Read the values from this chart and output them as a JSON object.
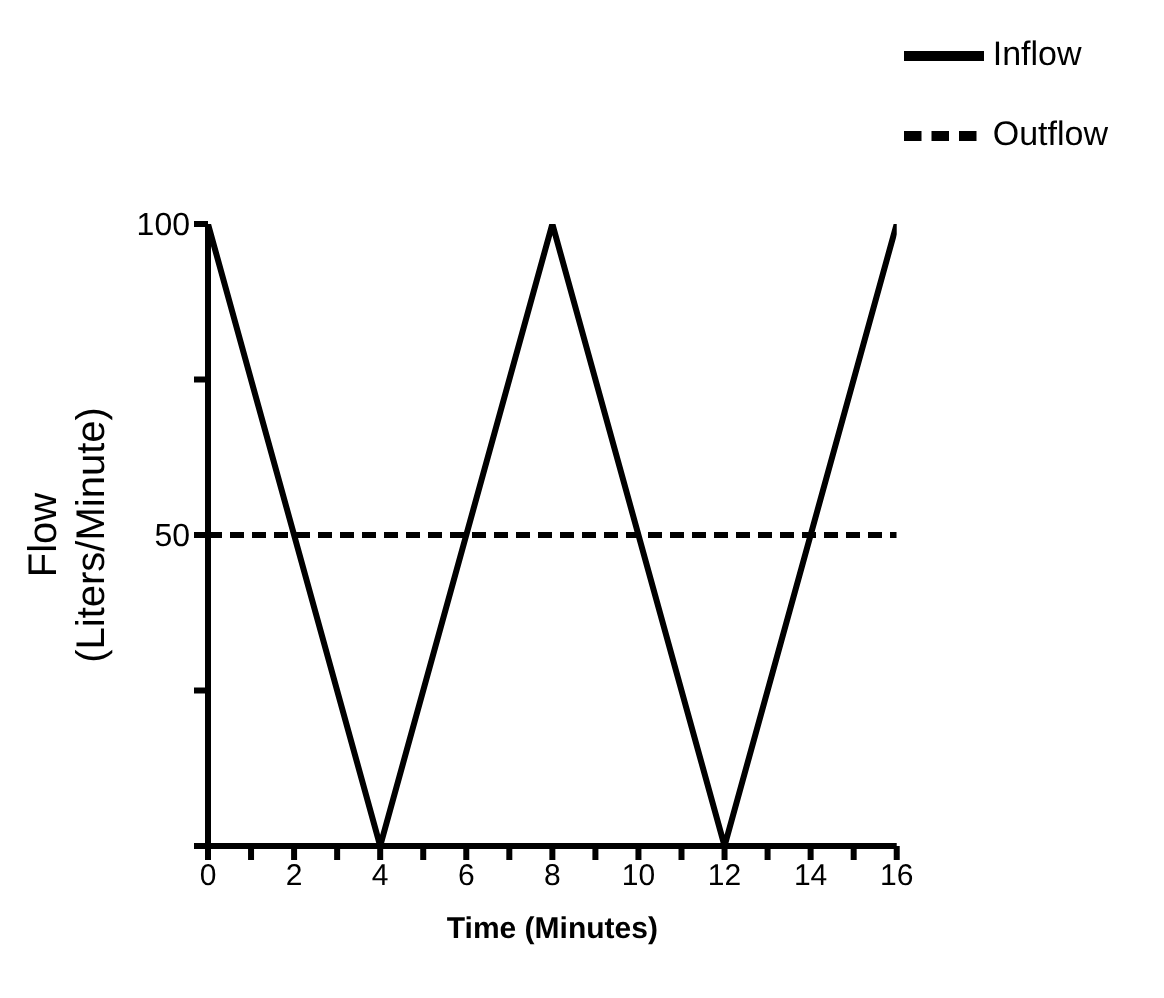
{
  "chart_data": {
    "type": "line",
    "xlabel": "Time (Minutes)",
    "ylabel": "Flow\n(Liters/Minute)",
    "x": [
      0,
      4,
      8,
      12,
      16
    ],
    "series": [
      {
        "name": "Inflow",
        "color": "#000000",
        "values": [
          100,
          0,
          100,
          0,
          100
        ],
        "line_style": "solid"
      },
      {
        "name": "Outflow",
        "color": "#000000",
        "x": [
          0,
          16
        ],
        "values": [
          50,
          50
        ],
        "line_style": "dashed"
      }
    ],
    "xlim": [
      0,
      16
    ],
    "xticks": [
      0,
      {
        "value": 1,
        "label": null
      },
      2,
      {
        "value": 3,
        "label": null
      },
      4,
      {
        "value": 5,
        "label": null
      },
      6,
      {
        "value": 7,
        "label": null
      },
      8,
      {
        "value": 9,
        "label": null
      },
      10,
      {
        "value": 11,
        "label": null
      },
      12,
      {
        "value": 13,
        "label": null
      },
      14,
      {
        "value": 15,
        "label": null
      },
      16
    ],
    "ylim": [
      0,
      100
    ],
    "yticks": [
      {
        "value": 0,
        "label": null
      },
      {
        "value": 25,
        "label": null
      },
      50,
      {
        "value": 75,
        "label": null
      },
      100
    ],
    "grid": false,
    "legend": "top right",
    "marker": "none"
  }
}
